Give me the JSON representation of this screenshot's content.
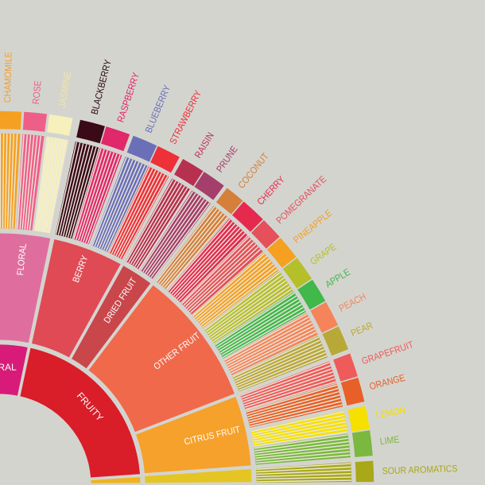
{
  "background": "#d4d4cf",
  "inner_ring": [
    {
      "name": "FLORAL",
      "color": "#d81b78"
    },
    {
      "name": "FRUITY",
      "color": "#d91d29"
    },
    {
      "name": "",
      "color": "#eeb41f"
    }
  ],
  "middle_ring": [
    {
      "name": "FLORAL",
      "color": "#df6e9f"
    },
    {
      "name": "BERRY",
      "color": "#e04a54"
    },
    {
      "name": "DRIED FRUIT",
      "color": "#c9464b"
    },
    {
      "name": "OTHER FRUIT",
      "color": "#f0694a"
    },
    {
      "name": "CITRUS FRUIT",
      "color": "#f5a12b"
    },
    {
      "name": "",
      "color": "#e5c523"
    }
  ],
  "leaves": [
    {
      "name": "CHAMOMILE",
      "color": "#f5a020",
      "label_color": "#f0a030"
    },
    {
      "name": "ROSE",
      "color": "#ee5f88",
      "label_color": "#e8608a"
    },
    {
      "name": "JASMINE",
      "color": "#f6f0bc",
      "label_color": "#efe6a6"
    },
    {
      "name": "BLACKBERRY",
      "color": "#3a0a18",
      "label_color": "#2a0a14"
    },
    {
      "name": "RASPBERRY",
      "color": "#e0286a",
      "label_color": "#e0286a"
    },
    {
      "name": "BLUEBERRY",
      "color": "#6a6fb8",
      "label_color": "#6a6fb8"
    },
    {
      "name": "STRAWBERRY",
      "color": "#ee3039",
      "label_color": "#ee3039"
    },
    {
      "name": "RAISIN",
      "color": "#b83050",
      "label_color": "#b83050"
    },
    {
      "name": "PRUNE",
      "color": "#a43e6a",
      "label_color": "#a43e6a"
    },
    {
      "name": "COCONUT",
      "color": "#d4803a",
      "label_color": "#d4803a"
    },
    {
      "name": "CHERRY",
      "color": "#e52a4e",
      "label_color": "#e52a4e"
    },
    {
      "name": "POMEGRANATE",
      "color": "#e5505a",
      "label_color": "#e5505a"
    },
    {
      "name": "PINEAPPLE",
      "color": "#f5a020",
      "label_color": "#f5a020"
    },
    {
      "name": "GRAPE",
      "color": "#b5bf2a",
      "label_color": "#b5bf2a"
    },
    {
      "name": "APPLE",
      "color": "#40b84a",
      "label_color": "#40b84a"
    },
    {
      "name": "PEACH",
      "color": "#f5845a",
      "label_color": "#f5845a"
    },
    {
      "name": "PEAR",
      "color": "#b8a838",
      "label_color": "#b8a838"
    },
    {
      "name": "GRAPEFRUIT",
      "color": "#ef5a5a",
      "label_color": "#ef5a5a"
    },
    {
      "name": "ORANGE",
      "color": "#e86028",
      "label_color": "#e86028"
    },
    {
      "name": "LEMON",
      "color": "#f5e000",
      "label_color": "#f0e000"
    },
    {
      "name": "LIME",
      "color": "#7ab840",
      "label_color": "#7ab840"
    },
    {
      "name": "SOUR AROMATICS",
      "color": "#a8a818",
      "label_color": "#a8a818"
    }
  ]
}
